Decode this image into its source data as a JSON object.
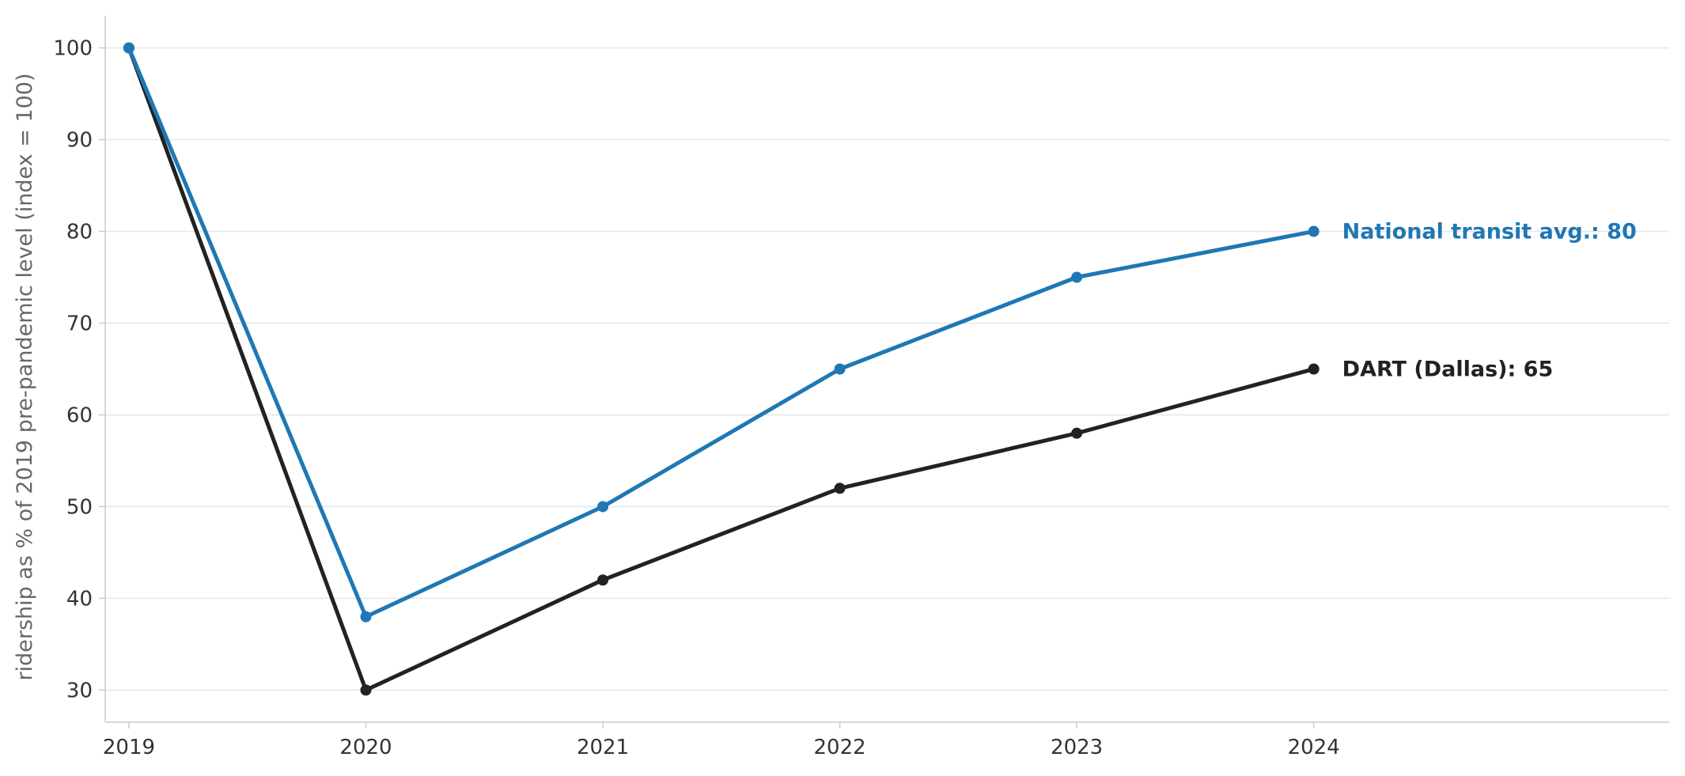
{
  "chart_data": {
    "type": "line",
    "title": "",
    "xlabel": "",
    "ylabel": "ridership as % of 2019 pre-pandemic level (index = 100)",
    "x": [
      2019,
      2020,
      2021,
      2022,
      2023,
      2024
    ],
    "x_ticks": [
      "2019",
      "2020",
      "2021",
      "2022",
      "2023",
      "2024"
    ],
    "xlim": [
      2018.9,
      2025.5
    ],
    "ylim": [
      26.5,
      103.5
    ],
    "y_ticks": [
      30,
      40,
      50,
      60,
      70,
      80,
      90,
      100
    ],
    "grid": "horizontal",
    "legend": "none",
    "series": [
      {
        "name": "National transit avg.",
        "color": "#1f77b4",
        "values": [
          100,
          38,
          50,
          65,
          75,
          80
        ],
        "end_label": "National transit avg.: 80"
      },
      {
        "name": "DART (Dallas)",
        "color": "#222222",
        "values": [
          100,
          30,
          42,
          52,
          58,
          65
        ],
        "end_label": "DART (Dallas): 65"
      }
    ]
  }
}
